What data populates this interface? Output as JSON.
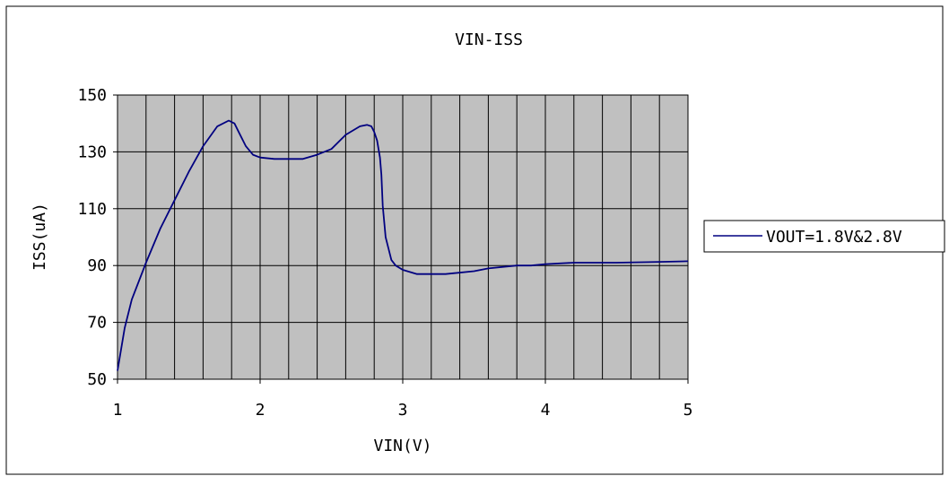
{
  "chart_data": {
    "type": "line",
    "title": "VIN-ISS",
    "xlabel": "VIN(V)",
    "ylabel": "ISS(uA)",
    "xlim": [
      1,
      5
    ],
    "ylim": [
      50,
      150
    ],
    "x_ticks": [
      "1",
      "2",
      "3",
      "4",
      "5"
    ],
    "y_ticks": [
      "150",
      "130",
      "110",
      "90",
      "70",
      "50"
    ],
    "grid": true,
    "plot_background": "#c0c0c0",
    "line_color": "#000080",
    "legend": "right",
    "series": [
      {
        "name": "VOUT=1.8V&2.8V",
        "x": [
          1.0,
          1.05,
          1.1,
          1.2,
          1.3,
          1.4,
          1.5,
          1.6,
          1.7,
          1.78,
          1.82,
          1.85,
          1.9,
          1.95,
          2.0,
          2.1,
          2.2,
          2.3,
          2.4,
          2.5,
          2.6,
          2.7,
          2.75,
          2.78,
          2.8,
          2.82,
          2.84,
          2.85,
          2.86,
          2.88,
          2.9,
          2.92,
          2.95,
          3.0,
          3.1,
          3.2,
          3.3,
          3.5,
          3.6,
          3.8,
          3.9,
          4.0,
          4.2,
          4.5,
          4.8,
          5.0
        ],
        "y": [
          53,
          68,
          78,
          91,
          103,
          113,
          123,
          132,
          139,
          141,
          140,
          137,
          132,
          129,
          128,
          127.5,
          127.5,
          127.5,
          129,
          131,
          136,
          139,
          139.5,
          139,
          137,
          134,
          128,
          122,
          111,
          100,
          96,
          92,
          90,
          88.5,
          87,
          87,
          87,
          88,
          89,
          90,
          90,
          90.5,
          91,
          91,
          91.3,
          91.5
        ]
      }
    ]
  }
}
